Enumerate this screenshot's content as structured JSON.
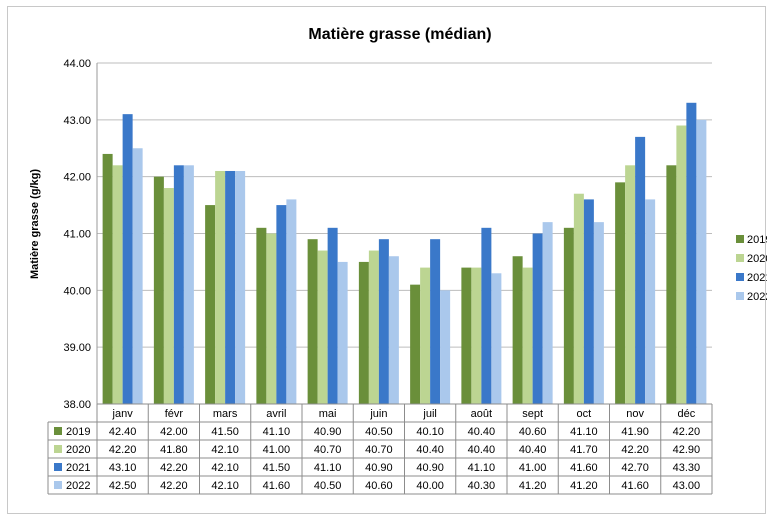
{
  "chart_data": {
    "type": "bar",
    "title": "Matière grasse  (médian)",
    "xlabel": "",
    "ylabel": "Matière grasse (g/kg)",
    "ylim": [
      38.0,
      44.0
    ],
    "yticks": [
      "38.00",
      "39.00",
      "40.00",
      "41.00",
      "42.00",
      "43.00",
      "44.00"
    ],
    "grid": true,
    "legend_position": "right",
    "categories": [
      "janv",
      "févr",
      "mars",
      "avril",
      "mai",
      "juin",
      "juil",
      "août",
      "sept",
      "oct",
      "nov",
      "déc"
    ],
    "series": [
      {
        "name": "2019",
        "color": "#6a8f3a",
        "values": [
          42.4,
          42.0,
          41.5,
          41.1,
          40.9,
          40.5,
          40.1,
          40.4,
          40.6,
          41.1,
          41.9,
          42.2
        ],
        "labels": [
          "42.40",
          "42.00",
          "41.50",
          "41.10",
          "40.90",
          "40.50",
          "40.10",
          "40.40",
          "40.60",
          "41.10",
          "41.90",
          "42.20"
        ]
      },
      {
        "name": "2020",
        "color": "#bcd592",
        "values": [
          42.2,
          41.8,
          42.1,
          41.0,
          40.7,
          40.7,
          40.4,
          40.4,
          40.4,
          41.7,
          42.2,
          42.9
        ],
        "labels": [
          "42.20",
          "41.80",
          "42.10",
          "41.00",
          "40.70",
          "40.70",
          "40.40",
          "40.40",
          "40.40",
          "41.70",
          "42.20",
          "42.90"
        ]
      },
      {
        "name": "2021",
        "color": "#3a78c9",
        "values": [
          43.1,
          42.2,
          42.1,
          41.5,
          41.1,
          40.9,
          40.9,
          41.1,
          41.0,
          41.6,
          42.7,
          43.3
        ],
        "labels": [
          "43.10",
          "42.20",
          "42.10",
          "41.50",
          "41.10",
          "40.90",
          "40.90",
          "41.10",
          "41.00",
          "41.60",
          "42.70",
          "43.30"
        ]
      },
      {
        "name": "2022",
        "color": "#aac8ec",
        "values": [
          42.5,
          42.2,
          42.1,
          41.6,
          40.5,
          40.6,
          40.0,
          40.3,
          41.2,
          41.2,
          41.6,
          43.0
        ],
        "labels": [
          "42.50",
          "42.20",
          "42.10",
          "41.60",
          "40.50",
          "40.60",
          "40.00",
          "40.30",
          "41.20",
          "41.20",
          "41.60",
          "43.00"
        ]
      }
    ]
  }
}
